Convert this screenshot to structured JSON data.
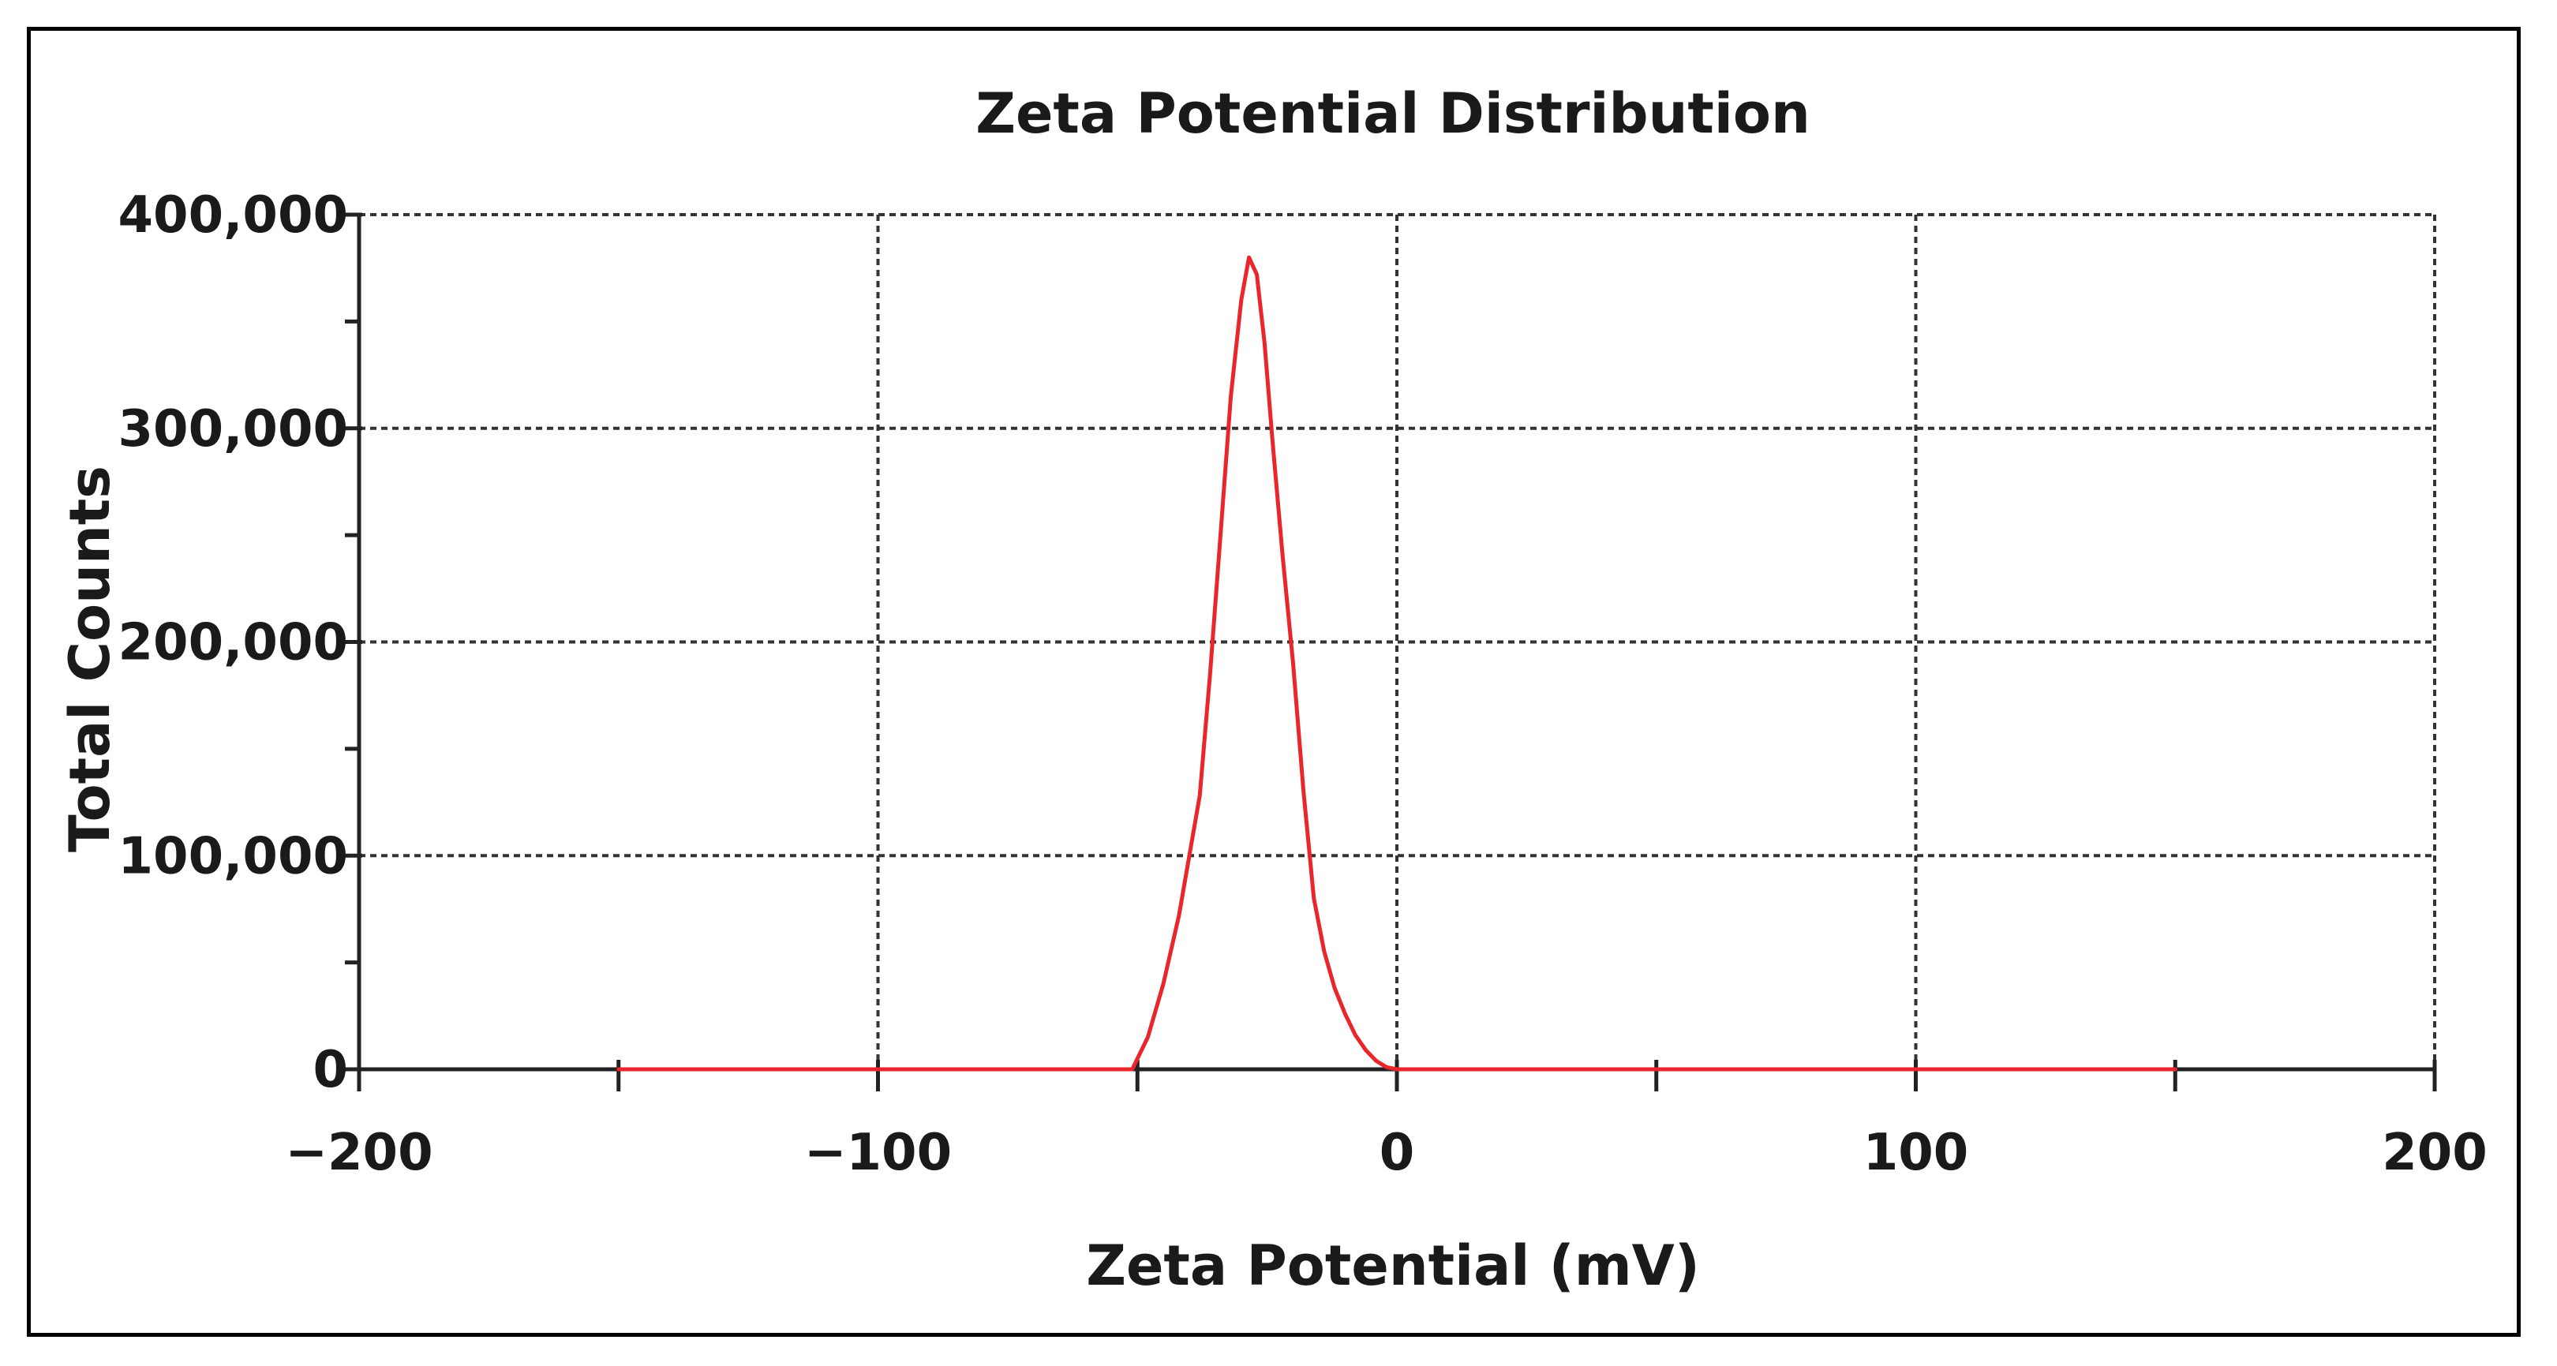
{
  "chart_data": {
    "type": "line",
    "title": "Zeta Potential Distribution",
    "xlabel": "Zeta Potential (mV)",
    "ylabel": "Total Counts",
    "xlim": [
      -200,
      200
    ],
    "ylim": [
      0,
      400000
    ],
    "x_ticks": [
      -200,
      -100,
      0,
      100,
      200
    ],
    "x_tick_labels": [
      "−200",
      "−100",
      "0",
      "100",
      "200"
    ],
    "x_minor_ticks": [
      -150,
      -50,
      50,
      150
    ],
    "y_ticks": [
      0,
      100000,
      200000,
      300000,
      400000
    ],
    "y_tick_labels": [
      "0",
      "100,000",
      "200,000",
      "300,000",
      "400,000"
    ],
    "y_minor_ticks": [
      50000,
      150000,
      250000,
      350000
    ],
    "grid": true,
    "series": [
      {
        "name": "Zeta Potential Distribution",
        "color": "#e8262b",
        "x": [
          -150,
          -100,
          -60,
          -51,
          -48,
          -45,
          -42,
          -40,
          -38,
          -36,
          -34,
          -32,
          -30,
          -28.5,
          -27,
          -25.5,
          -24,
          -22,
          -20,
          -18,
          -16,
          -14,
          -12,
          -10,
          -8,
          -6,
          -4,
          -2,
          0,
          50,
          100,
          150
        ],
        "y": [
          0,
          0,
          0,
          0,
          15000,
          40000,
          72000,
          100000,
          128000,
          185000,
          250000,
          315000,
          360000,
          380000,
          372000,
          340000,
          295000,
          240000,
          190000,
          130000,
          80000,
          55000,
          38000,
          26000,
          16000,
          9000,
          4000,
          1000,
          0,
          0,
          0,
          0
        ]
      }
    ]
  }
}
